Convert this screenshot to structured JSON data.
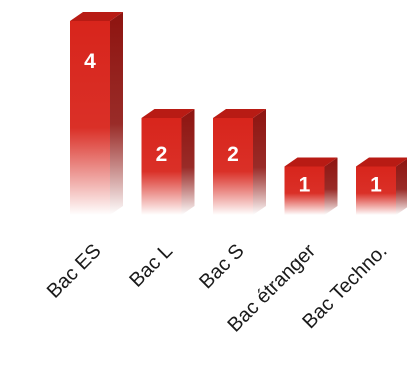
{
  "chart_data": {
    "type": "bar",
    "categories": [
      "Bac ES",
      "Bac L",
      "Bac S",
      "Bac étranger",
      "Bac Techno."
    ],
    "values": [
      4,
      2,
      2,
      1,
      1
    ],
    "data_labels": [
      "4",
      "2",
      "2",
      "1",
      "1"
    ],
    "title": "",
    "xlabel": "",
    "ylabel": "",
    "ylim": [
      0,
      4
    ],
    "grid": false,
    "legend": "none",
    "style": "3d",
    "colors": {
      "front_top": "#d8251c",
      "front_bottom": "#ffffff",
      "side": "#8e1410",
      "top": "#b81b14",
      "label": "#ffffff",
      "tick": "#1a1a1a"
    }
  }
}
